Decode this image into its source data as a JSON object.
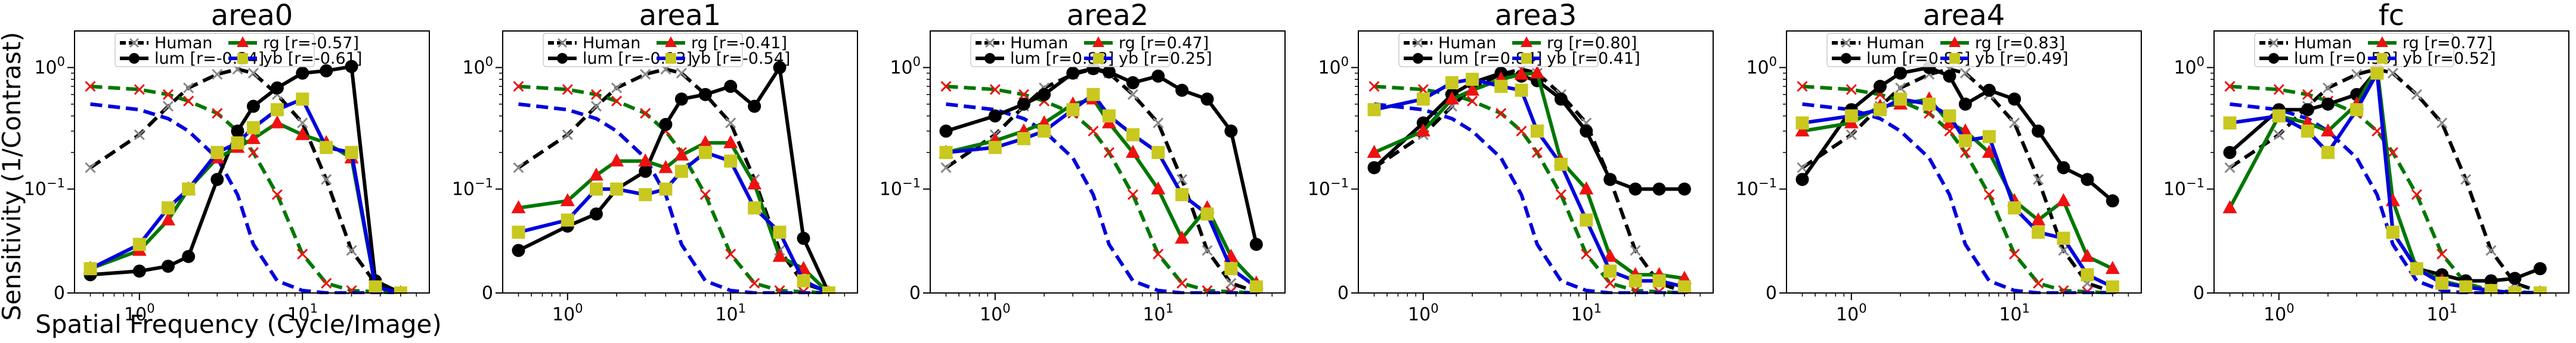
{
  "figure": {
    "ylabel": "Sensitivity (1/Contrast)",
    "xlabel": "Spatial Frequency (Cycle/Image)"
  },
  "colors": {
    "human": "#000000",
    "lum": "#000000",
    "rg": "#007700",
    "yb": "#0000dd",
    "rg_marker": "#ee1111",
    "yb_marker": "#c8c81e"
  },
  "chart_data": [
    {
      "type": "line",
      "title": "area0",
      "xscale": "log",
      "yscale": "symlog",
      "xlim": [
        0.4,
        60
      ],
      "ylim": [
        0,
        2
      ],
      "xticks": [
        "10^0",
        "10^1"
      ],
      "yticks": [
        "0",
        "10^-1",
        "10^0"
      ],
      "legend": [
        "Human",
        "lum [r=-0.24]",
        "rg [r=-0.57]",
        "yb [r=-0.61]"
      ],
      "x": [
        0.5,
        1,
        1.5,
        2,
        3,
        4,
        5,
        7,
        10,
        14,
        20,
        28,
        40
      ],
      "series": [
        {
          "name": "Human",
          "values": [
            0.15,
            0.28,
            0.48,
            0.68,
            0.88,
            0.97,
            0.9,
            0.6,
            0.35,
            0.12,
            0.035,
            0.008,
            0.001
          ]
        },
        {
          "name": "Human (rg)",
          "values": [
            0.7,
            0.66,
            0.6,
            0.53,
            0.42,
            0.3,
            0.2,
            0.09,
            0.032,
            0.008,
            0.002,
            0.001,
            0.0
          ]
        },
        {
          "name": "Human (yb)",
          "values": [
            0.5,
            0.45,
            0.38,
            0.3,
            0.18,
            0.09,
            0.04,
            0.01,
            0.002,
            0.0,
            0.0,
            0.0,
            0.0
          ]
        },
        {
          "name": "lum",
          "values": [
            0.015,
            0.018,
            0.022,
            0.03,
            0.12,
            0.3,
            0.48,
            0.68,
            0.9,
            0.94,
            1.02,
            0.01,
            0.0
          ]
        },
        {
          "name": "rg",
          "values": [
            0.02,
            0.035,
            0.06,
            0.1,
            0.18,
            0.22,
            0.26,
            0.35,
            0.28,
            0.24,
            0.18,
            0.005,
            0.0
          ]
        },
        {
          "name": "yb",
          "values": [
            0.02,
            0.04,
            0.07,
            0.1,
            0.2,
            0.24,
            0.32,
            0.45,
            0.55,
            0.22,
            0.2,
            0.005,
            0.0
          ]
        }
      ]
    },
    {
      "type": "line",
      "title": "area1",
      "xscale": "log",
      "yscale": "symlog",
      "xlim": [
        0.4,
        60
      ],
      "ylim": [
        0,
        2
      ],
      "xticks": [
        "10^0",
        "10^1"
      ],
      "yticks": [
        "0",
        "10^-1",
        "10^0"
      ],
      "legend": [
        "Human",
        "lum [r=-0.13]",
        "rg [r=-0.41]",
        "yb [r=-0.54]"
      ],
      "x": [
        0.5,
        1,
        1.5,
        2,
        3,
        4,
        5,
        7,
        10,
        14,
        20,
        28,
        40
      ],
      "series": [
        {
          "name": "Human",
          "values": [
            0.15,
            0.28,
            0.48,
            0.68,
            0.88,
            0.97,
            0.9,
            0.6,
            0.35,
            0.12,
            0.035,
            0.008,
            0.001
          ]
        },
        {
          "name": "Human (rg)",
          "values": [
            0.7,
            0.66,
            0.6,
            0.53,
            0.42,
            0.3,
            0.2,
            0.09,
            0.032,
            0.008,
            0.002,
            0.001,
            0.0
          ]
        },
        {
          "name": "Human (yb)",
          "values": [
            0.5,
            0.45,
            0.38,
            0.3,
            0.18,
            0.09,
            0.04,
            0.01,
            0.002,
            0.0,
            0.0,
            0.0,
            0.0
          ]
        },
        {
          "name": "lum",
          "values": [
            0.035,
            0.055,
            0.065,
            0.1,
            0.14,
            0.34,
            0.55,
            0.6,
            0.7,
            0.48,
            1.0,
            0.045,
            0.0
          ]
        },
        {
          "name": "rg",
          "values": [
            0.07,
            0.08,
            0.13,
            0.17,
            0.17,
            0.15,
            0.19,
            0.24,
            0.24,
            0.11,
            0.03,
            0.02,
            0.0
          ]
        },
        {
          "name": "yb",
          "values": [
            0.05,
            0.06,
            0.1,
            0.1,
            0.09,
            0.1,
            0.14,
            0.2,
            0.17,
            0.07,
            0.05,
            0.01,
            0.0
          ]
        }
      ]
    },
    {
      "type": "line",
      "title": "area2",
      "xscale": "log",
      "yscale": "symlog",
      "xlim": [
        0.4,
        60
      ],
      "ylim": [
        0,
        2
      ],
      "xticks": [
        "10^0",
        "10^1"
      ],
      "yticks": [
        "0",
        "10^-1",
        "10^0"
      ],
      "legend": [
        "Human",
        "lum [r=0.83]",
        "rg [r=0.47]",
        "yb [r=0.25]"
      ],
      "x": [
        0.5,
        1,
        1.5,
        2,
        3,
        4,
        5,
        7,
        10,
        14,
        20,
        28,
        40
      ],
      "series": [
        {
          "name": "Human",
          "values": [
            0.15,
            0.28,
            0.48,
            0.68,
            0.88,
            0.97,
            0.9,
            0.6,
            0.35,
            0.12,
            0.035,
            0.008,
            0.001
          ]
        },
        {
          "name": "Human (rg)",
          "values": [
            0.7,
            0.66,
            0.6,
            0.53,
            0.42,
            0.3,
            0.2,
            0.09,
            0.032,
            0.008,
            0.002,
            0.001,
            0.0
          ]
        },
        {
          "name": "Human (yb)",
          "values": [
            0.5,
            0.45,
            0.38,
            0.3,
            0.18,
            0.09,
            0.04,
            0.01,
            0.002,
            0.0,
            0.0,
            0.0,
            0.0
          ]
        },
        {
          "name": "lum",
          "values": [
            0.3,
            0.4,
            0.5,
            0.6,
            0.9,
            0.98,
            0.92,
            0.75,
            0.85,
            0.65,
            0.55,
            0.3,
            0.04
          ]
        },
        {
          "name": "rg",
          "values": [
            0.2,
            0.25,
            0.3,
            0.35,
            0.5,
            0.55,
            0.35,
            0.2,
            0.1,
            0.045,
            0.07,
            0.03,
            0.008
          ]
        },
        {
          "name": "yb",
          "values": [
            0.2,
            0.22,
            0.26,
            0.3,
            0.45,
            0.6,
            0.4,
            0.28,
            0.2,
            0.09,
            0.065,
            0.02,
            0.005
          ]
        }
      ]
    },
    {
      "type": "line",
      "title": "area3",
      "xscale": "log",
      "yscale": "symlog",
      "xlim": [
        0.4,
        60
      ],
      "ylim": [
        0,
        2
      ],
      "xticks": [
        "10^0",
        "10^1"
      ],
      "yticks": [
        "0",
        "10^-1",
        "10^0"
      ],
      "legend": [
        "Human",
        "lum [r=0.84]",
        "rg [r=0.80]",
        "yb [r=0.41]"
      ],
      "x": [
        0.5,
        1,
        1.5,
        2,
        3,
        4,
        5,
        7,
        10,
        14,
        20,
        28,
        40
      ],
      "series": [
        {
          "name": "Human",
          "values": [
            0.15,
            0.28,
            0.48,
            0.68,
            0.88,
            0.97,
            0.9,
            0.6,
            0.35,
            0.12,
            0.035,
            0.008,
            0.001
          ]
        },
        {
          "name": "Human (rg)",
          "values": [
            0.7,
            0.66,
            0.6,
            0.53,
            0.42,
            0.3,
            0.2,
            0.09,
            0.032,
            0.008,
            0.002,
            0.001,
            0.0
          ]
        },
        {
          "name": "Human (yb)",
          "values": [
            0.5,
            0.45,
            0.38,
            0.3,
            0.18,
            0.09,
            0.04,
            0.01,
            0.002,
            0.0,
            0.0,
            0.0,
            0.0
          ]
        },
        {
          "name": "lum",
          "values": [
            0.15,
            0.35,
            0.6,
            0.75,
            0.9,
            0.85,
            0.78,
            0.55,
            0.3,
            0.12,
            0.1,
            0.1,
            0.1
          ]
        },
        {
          "name": "rg",
          "values": [
            0.2,
            0.3,
            0.55,
            0.65,
            0.8,
            0.88,
            0.9,
            0.17,
            0.1,
            0.03,
            0.015,
            0.015,
            0.012
          ]
        },
        {
          "name": "yb",
          "values": [
            0.45,
            0.55,
            0.75,
            0.8,
            0.7,
            0.65,
            0.3,
            0.16,
            0.06,
            0.018,
            0.01,
            0.01,
            0.005
          ]
        }
      ]
    },
    {
      "type": "line",
      "title": "area4",
      "xscale": "log",
      "yscale": "symlog",
      "xlim": [
        0.4,
        60
      ],
      "ylim": [
        0,
        2
      ],
      "xticks": [
        "10^0",
        "10^1"
      ],
      "yticks": [
        "0",
        "10^-1",
        "10^0"
      ],
      "legend": [
        "Human",
        "lum [r=0.86]",
        "rg [r=0.83]",
        "yb [r=0.49]"
      ],
      "x": [
        0.5,
        1,
        1.5,
        2,
        3,
        4,
        5,
        7,
        10,
        14,
        20,
        28,
        40
      ],
      "series": [
        {
          "name": "Human",
          "values": [
            0.15,
            0.28,
            0.48,
            0.68,
            0.88,
            0.97,
            0.9,
            0.6,
            0.35,
            0.12,
            0.035,
            0.008,
            0.001
          ]
        },
        {
          "name": "Human (rg)",
          "values": [
            0.7,
            0.66,
            0.6,
            0.53,
            0.42,
            0.3,
            0.2,
            0.09,
            0.032,
            0.008,
            0.002,
            0.001,
            0.0
          ]
        },
        {
          "name": "Human (yb)",
          "values": [
            0.5,
            0.45,
            0.38,
            0.3,
            0.18,
            0.09,
            0.04,
            0.01,
            0.002,
            0.0,
            0.0,
            0.0,
            0.0
          ]
        },
        {
          "name": "lum",
          "values": [
            0.12,
            0.45,
            0.7,
            0.9,
            1.0,
            0.85,
            0.5,
            0.65,
            0.55,
            0.3,
            0.15,
            0.12,
            0.08
          ]
        },
        {
          "name": "rg",
          "values": [
            0.3,
            0.35,
            0.48,
            0.5,
            0.55,
            0.35,
            0.3,
            0.2,
            0.08,
            0.06,
            0.08,
            0.03,
            0.02
          ]
        },
        {
          "name": "yb",
          "values": [
            0.35,
            0.4,
            0.45,
            0.55,
            0.5,
            0.4,
            0.25,
            0.27,
            0.07,
            0.05,
            0.045,
            0.015,
            0.005
          ]
        }
      ]
    },
    {
      "type": "line",
      "title": "fc",
      "xscale": "log",
      "yscale": "symlog",
      "xlim": [
        0.4,
        60
      ],
      "ylim": [
        0,
        2
      ],
      "xticks": [
        "10^0",
        "10^1"
      ],
      "yticks": [
        "0",
        "10^-1",
        "10^0"
      ],
      "legend": [
        "Human",
        "lum [r=0.59]",
        "rg [r=0.77]",
        "yb [r=0.52]"
      ],
      "x": [
        0.5,
        1,
        1.5,
        2,
        3,
        4,
        5,
        7,
        10,
        14,
        20,
        28,
        40
      ],
      "series": [
        {
          "name": "Human",
          "values": [
            0.15,
            0.28,
            0.48,
            0.68,
            0.88,
            0.97,
            0.9,
            0.6,
            0.35,
            0.12,
            0.035,
            0.008,
            0.001
          ]
        },
        {
          "name": "Human (rg)",
          "values": [
            0.7,
            0.66,
            0.6,
            0.53,
            0.42,
            0.3,
            0.2,
            0.09,
            0.032,
            0.008,
            0.002,
            0.001,
            0.0
          ]
        },
        {
          "name": "Human (yb)",
          "values": [
            0.5,
            0.45,
            0.38,
            0.3,
            0.18,
            0.09,
            0.04,
            0.01,
            0.002,
            0.0,
            0.0,
            0.0,
            0.0
          ]
        },
        {
          "name": "lum",
          "values": [
            0.2,
            0.45,
            0.45,
            0.5,
            0.6,
            0.95,
            0.05,
            0.02,
            0.015,
            0.01,
            0.01,
            0.012,
            0.02
          ]
        },
        {
          "name": "rg",
          "values": [
            0.07,
            0.4,
            0.35,
            0.3,
            0.5,
            1.0,
            0.08,
            0.02,
            0.01,
            0.005,
            0.002,
            0.0,
            0.0
          ]
        },
        {
          "name": "yb",
          "values": [
            0.35,
            0.4,
            0.3,
            0.2,
            0.45,
            0.9,
            0.05,
            0.02,
            0.008,
            0.005,
            0.002,
            0.0,
            0.0
          ]
        }
      ]
    }
  ]
}
